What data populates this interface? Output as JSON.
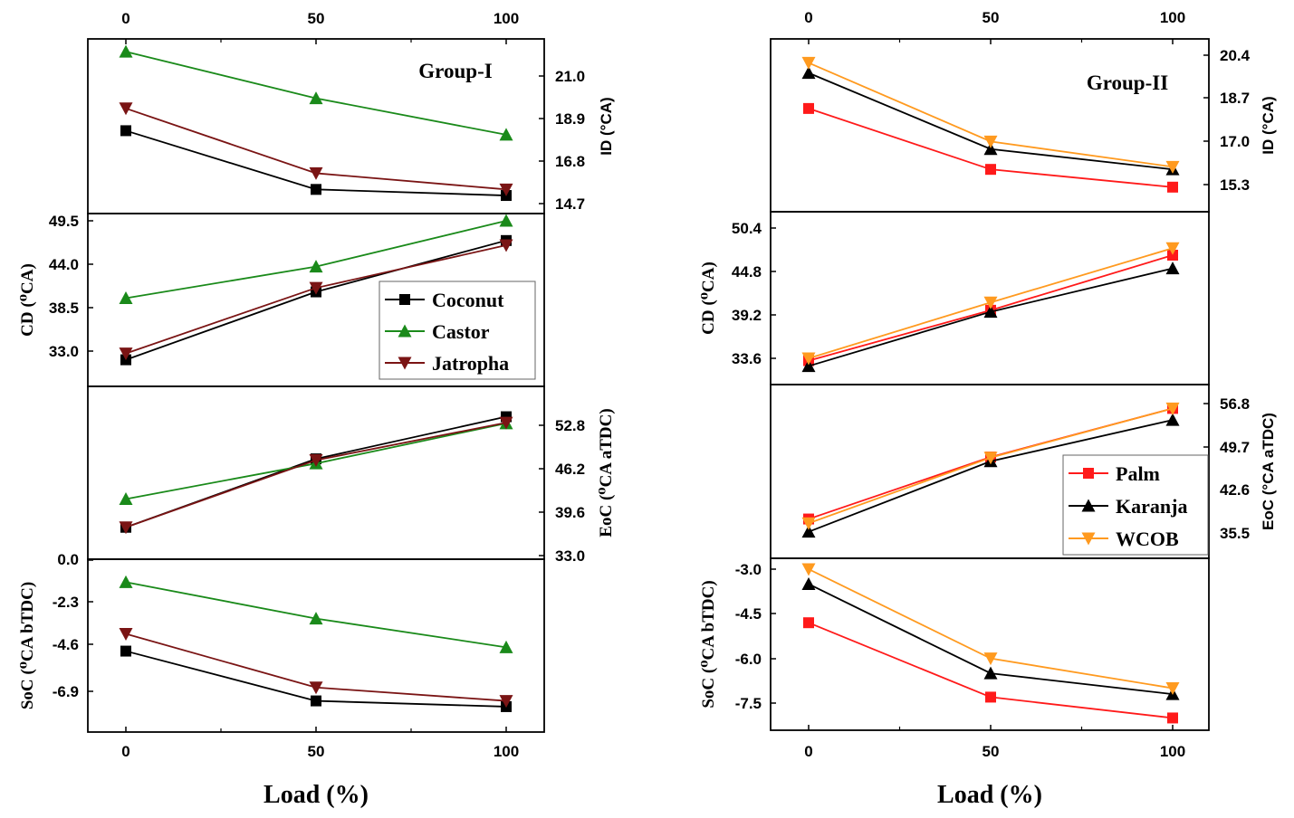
{
  "chart_data": [
    {
      "type": "line",
      "title": "Group-I",
      "xlabel": "Load (%)",
      "x": [
        0,
        50,
        100
      ],
      "xticks": [
        "0",
        "50",
        "100"
      ],
      "colors": {
        "Coconut": "#000000",
        "Castor": "#1a8a1a",
        "Jatropha": "#7a1414"
      },
      "markers": {
        "Coconut": "square",
        "Castor": "triangle-up",
        "Jatropha": "triangle-down"
      },
      "legend": [
        "Coconut",
        "Castor",
        "Jatropha"
      ],
      "panels": [
        {
          "key": "ID",
          "ylabel": "ID (°CA)",
          "axis_side": "right",
          "yticks": [
            "21.0",
            "18.9",
            "16.8",
            "14.7"
          ],
          "ylim": [
            14.25,
            22.25
          ],
          "series": [
            {
              "name": "Coconut",
              "values": [
                18.3,
                15.4,
                15.1
              ]
            },
            {
              "name": "Castor",
              "values": [
                22.2,
                19.9,
                18.1
              ]
            },
            {
              "name": "Jatropha",
              "values": [
                19.4,
                16.2,
                15.4
              ]
            }
          ]
        },
        {
          "key": "CD",
          "ylabel": "CD (⁰CA)",
          "axis_side": "left",
          "yticks": [
            "49.5",
            "44.0",
            "38.5",
            "33.0"
          ],
          "ylim": [
            29.8,
            51.7
          ],
          "series": [
            {
              "name": "Coconut",
              "values": [
                31.9,
                40.5,
                47.0
              ]
            },
            {
              "name": "Castor",
              "values": [
                39.7,
                43.7,
                49.5
              ]
            },
            {
              "name": "Jatropha",
              "values": [
                32.7,
                41.0,
                46.4
              ]
            }
          ]
        },
        {
          "key": "EoC",
          "ylabel": "EoC (⁰CA aTDC)",
          "axis_side": "right",
          "yticks": [
            "52.8",
            "46.2",
            "39.6",
            "33.0"
          ],
          "ylim": [
            33.0,
            58.0
          ],
          "series": [
            {
              "name": "Coconut",
              "values": [
                37.3,
                47.7,
                54.1
              ]
            },
            {
              "name": "Castor",
              "values": [
                41.6,
                47.0,
                53.1
              ]
            },
            {
              "name": "Jatropha",
              "values": [
                37.3,
                47.5,
                53.2
              ]
            }
          ]
        },
        {
          "key": "SoC",
          "ylabel": "SoC (⁰CA bTDC)",
          "axis_side": "left",
          "yticks": [
            "0.0",
            "-2.3",
            "-4.6",
            "-6.9"
          ],
          "ylim": [
            -8.7,
            0.05
          ],
          "series": [
            {
              "name": "Coconut",
              "values": [
                -4.8,
                -7.4,
                -7.7
              ]
            },
            {
              "name": "Castor",
              "values": [
                -1.2,
                -3.1,
                -4.6
              ]
            },
            {
              "name": "Jatropha",
              "values": [
                -3.9,
                -6.7,
                -7.4
              ]
            }
          ]
        }
      ]
    },
    {
      "type": "line",
      "title": "Group-II",
      "xlabel": "Load (%)",
      "x": [
        0,
        50,
        100
      ],
      "xticks": [
        "0",
        "50",
        "100"
      ],
      "colors": {
        "Palm": "#ff1a1a",
        "Karanja": "#000000",
        "WCOB": "#ff9a1f"
      },
      "markers": {
        "Palm": "square",
        "Karanja": "triangle-up",
        "WCOB": "triangle-down"
      },
      "legend": [
        "Palm",
        "Karanja",
        "WCOB"
      ],
      "panels": [
        {
          "key": "ID",
          "ylabel": "ID (°CA)",
          "axis_side": "right",
          "yticks": [
            "20.4",
            "18.7",
            "17.0",
            "15.3"
          ],
          "ylim": [
            14.4,
            21.2
          ],
          "series": [
            {
              "name": "Palm",
              "values": [
                18.3,
                15.9,
                15.2
              ]
            },
            {
              "name": "Karanja",
              "values": [
                19.7,
                16.7,
                15.9
              ]
            },
            {
              "name": "WCOB",
              "values": [
                20.1,
                17.0,
                16.0
              ]
            }
          ]
        },
        {
          "key": "CD",
          "ylabel": "CD (⁰CA)",
          "axis_side": "left",
          "yticks": [
            "50.4",
            "44.8",
            "39.2",
            "33.6"
          ],
          "ylim": [
            30.6,
            51.5
          ],
          "series": [
            {
              "name": "Palm",
              "values": [
                33.3,
                39.8,
                46.9
              ]
            },
            {
              "name": "Karanja",
              "values": [
                32.6,
                39.6,
                45.2
              ]
            },
            {
              "name": "WCOB",
              "values": [
                33.6,
                40.8,
                47.8
              ]
            }
          ]
        },
        {
          "key": "EoC",
          "ylabel": "EoC (°CA aTDC)",
          "axis_side": "right",
          "yticks": [
            "56.8",
            "49.7",
            "42.6",
            "35.5"
          ],
          "ylim": [
            31.0,
            57.5
          ],
          "series": [
            {
              "name": "Palm",
              "values": [
                37.8,
                48.0,
                56.0
              ]
            },
            {
              "name": "Karanja",
              "values": [
                35.7,
                47.3,
                54.1
              ]
            },
            {
              "name": "WCOB",
              "values": [
                37.1,
                47.9,
                56.0
              ]
            }
          ]
        },
        {
          "key": "SoC",
          "ylabel": "SoC (⁰CA bTDC)",
          "axis_side": "left",
          "yticks": [
            "-3.0",
            "-4.5",
            "-6.0",
            "-7.5"
          ],
          "ylim": [
            -8.4,
            -2.98
          ],
          "series": [
            {
              "name": "Palm",
              "values": [
                -4.8,
                -7.3,
                -8.0
              ]
            },
            {
              "name": "Karanja",
              "values": [
                -3.5,
                -6.5,
                -7.2
              ]
            },
            {
              "name": "WCOB",
              "values": [
                -3.0,
                -6.0,
                -7.0
              ]
            }
          ]
        }
      ]
    }
  ]
}
